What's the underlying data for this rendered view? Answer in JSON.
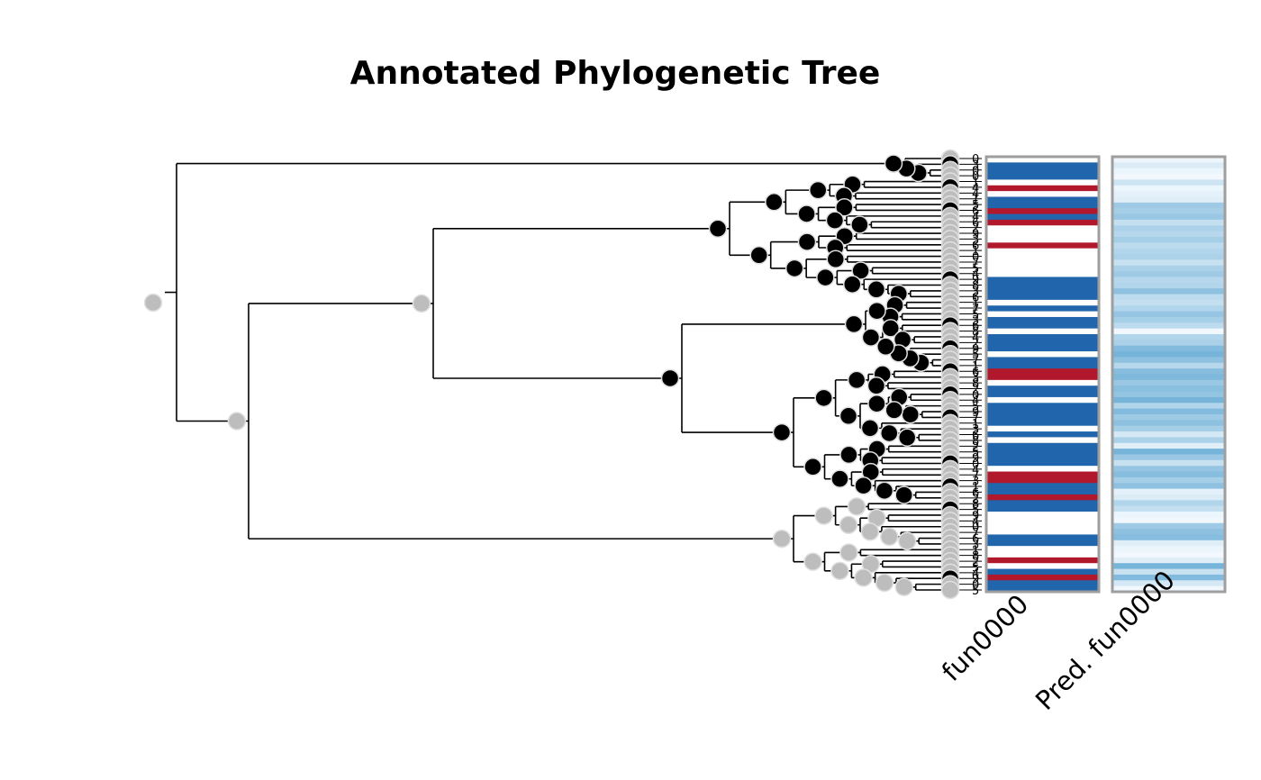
{
  "chart_data": {
    "type": "tree-annotation",
    "title": "Annotated Phylogenetic Tree",
    "panels": [
      {
        "label": "fun0000"
      },
      {
        "label": "Pred. fun0000"
      }
    ],
    "colors": {
      "branch": "#000000",
      "node_unknown": "#bdbdbd",
      "node_known": "#000000",
      "node_border": "#e0e0e0",
      "annotation_present": "#2166ac",
      "annotation_absent": "#b2182b",
      "annotation_missing": "#ffffff",
      "panel_border": "#9e9e9e",
      "prediction_high": "#6baed6",
      "prediction_low": "#f7fbff"
    },
    "n_tips": 76,
    "observed": [
      9,
      1,
      1,
      1,
      9,
      0,
      9,
      1,
      1,
      0,
      1,
      0,
      9,
      9,
      9,
      0,
      9,
      9,
      9,
      9,
      9,
      1,
      1,
      1,
      1,
      9,
      1,
      9,
      1,
      1,
      9,
      1,
      1,
      1,
      9,
      1,
      1,
      0,
      0,
      9,
      1,
      1,
      9,
      1,
      1,
      1,
      1,
      9,
      1,
      9,
      1,
      1,
      1,
      1,
      9,
      0,
      0,
      1,
      1,
      0,
      1,
      1,
      9,
      9,
      9,
      9,
      1,
      1,
      9,
      9,
      0,
      9,
      1,
      0,
      1,
      1
    ],
    "predicted": [
      0.04,
      0.12,
      0.05,
      0.02,
      0.18,
      0.05,
      0.08,
      0.1,
      0.38,
      0.35,
      0.4,
      0.22,
      0.32,
      0.28,
      0.35,
      0.25,
      0.3,
      0.32,
      0.2,
      0.33,
      0.38,
      0.28,
      0.3,
      0.45,
      0.25,
      0.22,
      0.3,
      0.42,
      0.35,
      0.25,
      0.03,
      0.3,
      0.33,
      0.5,
      0.55,
      0.45,
      0.28,
      0.48,
      0.52,
      0.4,
      0.47,
      0.43,
      0.55,
      0.3,
      0.5,
      0.38,
      0.45,
      0.35,
      0.15,
      0.32,
      0.1,
      0.55,
      0.4,
      0.2,
      0.42,
      0.48,
      0.35,
      0.45,
      0.08,
      0.12,
      0.3,
      0.22,
      0.05,
      0.03,
      0.38,
      0.45,
      0.48,
      0.1,
      0.05,
      0.02,
      0.1,
      0.55,
      0.2,
      0.5,
      0.15,
      0.03
    ],
    "tip_labels": [
      "0",
      "3",
      "0",
      "0",
      "1",
      "4",
      "4",
      "1",
      "5",
      "6",
      "4",
      "6",
      "2",
      "9",
      "3",
      "6",
      "1",
      "0",
      "7",
      "5",
      "4",
      "9",
      "8",
      "3",
      "6",
      "1",
      "7",
      "5",
      "3",
      "6",
      "8",
      "4",
      "2",
      "9",
      "5",
      "7",
      "1",
      "6",
      "3",
      "8",
      "2",
      "0",
      "4",
      "5",
      "9",
      "7",
      "1",
      "3",
      "6",
      "8",
      "2",
      "5",
      "9",
      "0",
      "4",
      "7",
      "3",
      "1",
      "6",
      "2",
      "8",
      "5",
      "9",
      "4",
      "0",
      "7",
      "6",
      "3",
      "1",
      "8",
      "2",
      "5",
      "4",
      "9",
      "0",
      "5"
    ]
  }
}
